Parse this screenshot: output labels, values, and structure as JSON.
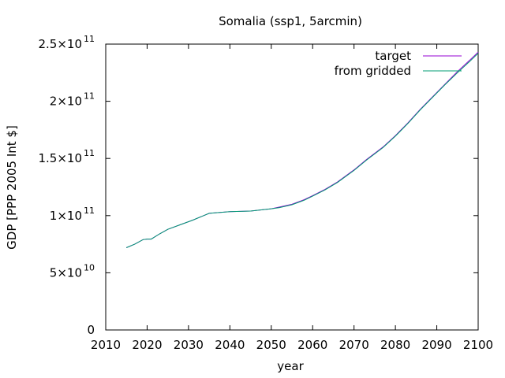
{
  "chart_data": {
    "type": "line",
    "title": "Somalia (ssp1, 5arcmin)",
    "xlabel": "year",
    "ylabel": "GDP [PPP 2005 Int $]",
    "xlim": [
      2010,
      2100
    ],
    "ylim": [
      0,
      250000000000
    ],
    "xticks": [
      2010,
      2020,
      2030,
      2040,
      2050,
      2060,
      2070,
      2080,
      2090,
      2100
    ],
    "yticks": [
      {
        "value": 0,
        "mantissa": "0",
        "exponent": ""
      },
      {
        "value": 50000000000,
        "mantissa": "5×10",
        "exponent": "10"
      },
      {
        "value": 100000000000,
        "mantissa": "1×10",
        "exponent": "11"
      },
      {
        "value": 150000000000,
        "mantissa": "1.5×10",
        "exponent": "11"
      },
      {
        "value": 200000000000,
        "mantissa": "2×10",
        "exponent": "11"
      },
      {
        "value": 250000000000,
        "mantissa": "2.5×10",
        "exponent": "11"
      }
    ],
    "grid": false,
    "legend_position": "top-right",
    "series": [
      {
        "name": "target",
        "color": "#9400d3",
        "x": [
          2015,
          2017,
          2019,
          2020,
          2021,
          2023,
          2025,
          2028,
          2031,
          2035,
          2040,
          2045,
          2050,
          2052,
          2055,
          2058,
          2060,
          2063,
          2066,
          2070,
          2073,
          2077,
          2080,
          2083,
          2086,
          2089,
          2092,
          2095,
          2098,
          2100
        ],
        "y": [
          72000000000,
          75000000000,
          79000000000,
          79500000000,
          79500000000,
          84000000000,
          88000000000,
          92000000000,
          96000000000,
          102000000000,
          103500000000,
          104000000000,
          106000000000,
          107500000000,
          110000000000,
          114000000000,
          117500000000,
          123000000000,
          129500000000,
          140000000000,
          149000000000,
          160000000000,
          170000000000,
          181000000000,
          193000000000,
          204000000000,
          215000000000,
          226000000000,
          236000000000,
          243000000000
        ]
      },
      {
        "name": "from gridded",
        "color": "#009e73",
        "x": [
          2015,
          2017,
          2019,
          2020,
          2021,
          2023,
          2025,
          2028,
          2031,
          2035,
          2040,
          2045,
          2050,
          2052,
          2055,
          2058,
          2060,
          2063,
          2066,
          2070,
          2073,
          2077,
          2080,
          2083,
          2086,
          2089,
          2092,
          2095,
          2098,
          2100
        ],
        "y": [
          72000000000,
          75000000000,
          79000000000,
          79500000000,
          79500000000,
          84000000000,
          88000000000,
          92000000000,
          96000000000,
          102000000000,
          103500000000,
          104000000000,
          106000000000,
          107000000000,
          109500000000,
          113500000000,
          117000000000,
          122500000000,
          129000000000,
          139500000000,
          148500000000,
          159500000000,
          169500000000,
          180500000000,
          192500000000,
          203500000000,
          214500000000,
          225000000000,
          235000000000,
          242000000000
        ]
      }
    ]
  }
}
